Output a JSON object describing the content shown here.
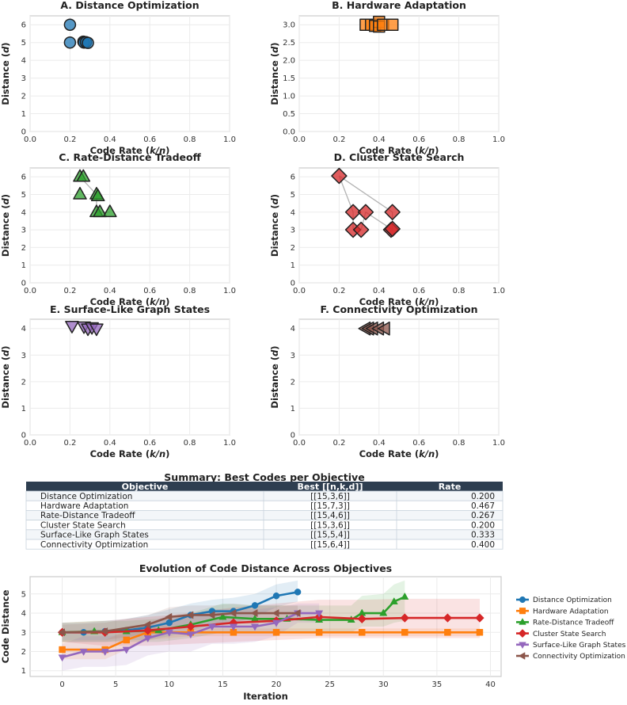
{
  "colors": {
    "distance": "#1f77b4",
    "hardware": "#ff7f0e",
    "tradeoff": "#2ca02c",
    "cluster": "#d62728",
    "surface": "#9467bd",
    "connectivity": "#8c564b",
    "table_header": "#2e3e50"
  },
  "chart_data": [
    {
      "id": "A",
      "type": "scatter",
      "title": "A. Distance Optimization",
      "xlabel": "Code Rate (k/n)",
      "ylabel": "Distance (d)",
      "xlim": [
        0,
        1
      ],
      "ylim": [
        0,
        6.5
      ],
      "xticks": [
        "0.0",
        "0.2",
        "0.4",
        "0.6",
        "0.8",
        "1.0"
      ],
      "yticks": [
        "0",
        "1",
        "2",
        "3",
        "4",
        "5",
        "6"
      ],
      "marker": "circle",
      "color_key": "distance",
      "points": [
        [
          0.2,
          6
        ],
        [
          0.2,
          5
        ],
        [
          0.267,
          5.05
        ],
        [
          0.27,
          5
        ],
        [
          0.28,
          5.02
        ],
        [
          0.29,
          4.98
        ]
      ],
      "path": []
    },
    {
      "id": "B",
      "type": "scatter",
      "title": "B. Hardware Adaptation",
      "xlabel": "Code Rate (k/n)",
      "ylabel": "Distance (d)",
      "xlim": [
        0,
        1
      ],
      "ylim": [
        0,
        3.25
      ],
      "xticks": [
        "0.0",
        "0.2",
        "0.4",
        "0.6",
        "0.8",
        "1.0"
      ],
      "yticks": [
        "0.0",
        "0.5",
        "1.0",
        "1.5",
        "2.0",
        "2.5",
        "3.0"
      ],
      "marker": "square",
      "color_key": "hardware",
      "points": [
        [
          0.333,
          3
        ],
        [
          0.36,
          3
        ],
        [
          0.38,
          2.97
        ],
        [
          0.4,
          3.08
        ],
        [
          0.4,
          2.95
        ],
        [
          0.42,
          3
        ],
        [
          0.467,
          3
        ]
      ],
      "path": []
    },
    {
      "id": "C",
      "type": "scatter",
      "title": "C. Rate-Distance Tradeoff",
      "xlabel": "Code Rate (k/n)",
      "ylabel": "Distance (d)",
      "xlim": [
        0,
        1
      ],
      "ylim": [
        0,
        6.5
      ],
      "xticks": [
        "0.0",
        "0.2",
        "0.4",
        "0.6",
        "0.8",
        "1.0"
      ],
      "yticks": [
        "0",
        "1",
        "2",
        "3",
        "4",
        "5",
        "6"
      ],
      "marker": "triangle-up",
      "color_key": "tradeoff",
      "points": [
        [
          0.25,
          6
        ],
        [
          0.267,
          6
        ],
        [
          0.25,
          5
        ],
        [
          0.333,
          5
        ],
        [
          0.34,
          4.9
        ],
        [
          0.333,
          4
        ],
        [
          0.35,
          4
        ],
        [
          0.4,
          4
        ]
      ],
      "path": [
        [
          0.25,
          6
        ],
        [
          0.333,
          5
        ],
        [
          0.333,
          4
        ],
        [
          0.4,
          4
        ]
      ]
    },
    {
      "id": "D",
      "type": "scatter",
      "title": "D. Cluster State Search",
      "xlabel": "Code Rate (k/n)",
      "ylabel": "Distance (d)",
      "xlim": [
        0,
        1
      ],
      "ylim": [
        0,
        6.5
      ],
      "xticks": [
        "0.0",
        "0.2",
        "0.4",
        "0.6",
        "0.8",
        "1.0"
      ],
      "yticks": [
        "0",
        "1",
        "2",
        "3",
        "4",
        "5",
        "6"
      ],
      "marker": "diamond",
      "color_key": "cluster",
      "points": [
        [
          0.2,
          6.05
        ],
        [
          0.27,
          4
        ],
        [
          0.333,
          4
        ],
        [
          0.467,
          4
        ],
        [
          0.27,
          3
        ],
        [
          0.31,
          3
        ],
        [
          0.46,
          3
        ],
        [
          0.467,
          3.05
        ]
      ],
      "path": [
        [
          0.2,
          6.05
        ],
        [
          0.27,
          4
        ],
        [
          0.27,
          3
        ],
        [
          0.31,
          3
        ],
        [
          0.333,
          4
        ],
        [
          0.467,
          3
        ],
        [
          0.467,
          4
        ],
        [
          0.2,
          6.05
        ]
      ]
    },
    {
      "id": "E",
      "type": "scatter",
      "title": "E. Surface-Like Graph States",
      "xlabel": "Code Rate (k/n)",
      "ylabel": "Distance (d)",
      "xlim": [
        0,
        1
      ],
      "ylim": [
        0,
        4.35
      ],
      "xticks": [
        "0.0",
        "0.2",
        "0.4",
        "0.6",
        "0.8",
        "1.0"
      ],
      "yticks": [
        "0",
        "1",
        "2",
        "3",
        "4"
      ],
      "marker": "triangle-down",
      "color_key": "surface",
      "points": [
        [
          0.21,
          4.1
        ],
        [
          0.27,
          4.08
        ],
        [
          0.29,
          4
        ],
        [
          0.31,
          4.05
        ],
        [
          0.333,
          4
        ]
      ],
      "path": []
    },
    {
      "id": "F",
      "type": "scatter",
      "title": "F. Connectivity Optimization",
      "xlabel": "Code Rate (k/n)",
      "ylabel": "Distance (d)",
      "xlim": [
        0,
        1
      ],
      "ylim": [
        0,
        4.35
      ],
      "xticks": [
        "0.0",
        "0.2",
        "0.4",
        "0.6",
        "0.8",
        "1.0"
      ],
      "yticks": [
        "0",
        "1",
        "2",
        "3",
        "4"
      ],
      "marker": "triangle-left",
      "color_key": "connectivity",
      "points": [
        [
          0.333,
          4
        ],
        [
          0.35,
          4
        ],
        [
          0.37,
          4
        ],
        [
          0.4,
          4
        ],
        [
          0.43,
          4
        ]
      ],
      "path": []
    },
    {
      "id": "table",
      "type": "table",
      "title": "Summary: Best Codes per Objective",
      "columns": [
        "Objective",
        "Best [[n,k,d]]",
        "Rate"
      ],
      "rows": [
        [
          "Distance Optimization",
          "[[15,3,6]]",
          "0.200"
        ],
        [
          "Hardware Adaptation",
          "[[15,7,3]]",
          "0.467"
        ],
        [
          "Rate-Distance Tradeoff",
          "[[15,4,6]]",
          "0.267"
        ],
        [
          "Cluster State Search",
          "[[15,3,6]]",
          "0.200"
        ],
        [
          "Surface-Like Graph States",
          "[[15,5,4]]",
          "0.333"
        ],
        [
          "Connectivity Optimization",
          "[[15,6,4]]",
          "0.400"
        ]
      ]
    },
    {
      "id": "evolution",
      "type": "line",
      "title": "Evolution of Code Distance Across Objectives",
      "xlabel": "Iteration",
      "ylabel": "Code Distance",
      "xlim": [
        -3,
        41
      ],
      "ylim": [
        0.7,
        5.9
      ],
      "xticks": [
        0,
        5,
        10,
        15,
        20,
        25,
        30,
        35,
        40
      ],
      "yticks": [
        1,
        2,
        3,
        4,
        5
      ],
      "series": [
        {
          "name": "Distance Optimization",
          "color_key": "distance",
          "marker": "circle",
          "x": [
            0,
            2,
            4,
            6,
            8,
            10,
            12,
            14,
            16,
            18,
            20,
            22
          ],
          "y": [
            3,
            3,
            3.05,
            3.1,
            3.25,
            3.5,
            3.9,
            4.1,
            4.1,
            4.4,
            4.9,
            5.1
          ],
          "lower": [
            2.5,
            2.5,
            2.5,
            2.6,
            2.6,
            2.8,
            3.1,
            3.3,
            3.5,
            3.8,
            4.3,
            4.6
          ],
          "upper": [
            3.5,
            3.5,
            3.6,
            3.7,
            3.9,
            4.2,
            4.5,
            4.7,
            4.8,
            5,
            5.5,
            5.7
          ]
        },
        {
          "name": "Hardware Adaptation",
          "color_key": "hardware",
          "marker": "square",
          "x": [
            0,
            4,
            6,
            8,
            12,
            16,
            20,
            24,
            28,
            32,
            36,
            39
          ],
          "y": [
            2.1,
            2.1,
            2.6,
            3,
            3,
            3,
            3,
            3,
            3,
            3,
            3,
            3
          ],
          "lower": [
            1.6,
            1.6,
            2.1,
            2.6,
            2.8,
            2.8,
            2.8,
            2.8,
            2.8,
            2.8,
            2.8,
            2.8
          ],
          "upper": [
            2.6,
            2.6,
            3.1,
            3.4,
            3.2,
            3.2,
            3.2,
            3.2,
            3.2,
            3.2,
            3.2,
            3.2
          ]
        },
        {
          "name": "Rate-Distance Tradeoff",
          "color_key": "tradeoff",
          "marker": "triangle-up",
          "x": [
            0,
            3,
            6,
            9,
            12,
            15,
            18,
            21,
            24,
            27,
            28,
            30,
            31,
            32
          ],
          "y": [
            3,
            3.05,
            3.05,
            3.1,
            3.4,
            3.8,
            3.7,
            3.7,
            3.65,
            3.65,
            4,
            4,
            4.6,
            4.85
          ],
          "lower": [
            2.5,
            2.5,
            2.5,
            2.5,
            2.7,
            3,
            3,
            3,
            3,
            3,
            3.3,
            3.3,
            3.5,
            3.6
          ],
          "upper": [
            3.5,
            3.6,
            3.6,
            3.7,
            4,
            4.5,
            4.4,
            4.4,
            4.4,
            4.4,
            4.9,
            5,
            5.5,
            5.7
          ]
        },
        {
          "name": "Cluster State Search",
          "color_key": "cluster",
          "marker": "diamond",
          "x": [
            0,
            4,
            8,
            12,
            16,
            20,
            24,
            28,
            32,
            36,
            39
          ],
          "y": [
            3,
            3,
            3.1,
            3.3,
            3.5,
            3.6,
            3.8,
            3.7,
            3.75,
            3.75,
            3.75
          ],
          "lower": [
            2.5,
            2.3,
            2.3,
            2.4,
            2.5,
            2.6,
            2.7,
            2.7,
            2.7,
            2.7,
            2.7
          ],
          "upper": [
            3.5,
            3.6,
            3.8,
            4,
            4.3,
            4.5,
            4.7,
            4.7,
            4.75,
            4.75,
            4.75
          ]
        },
        {
          "name": "Surface-Like Graph States",
          "color_key": "surface",
          "marker": "triangle-down",
          "x": [
            0,
            2,
            4,
            6,
            8,
            10,
            12,
            14,
            16,
            18,
            20,
            22,
            24
          ],
          "y": [
            1.7,
            2,
            2,
            2.1,
            2.7,
            3,
            2.9,
            3.3,
            3.3,
            3.3,
            3.5,
            4,
            4
          ],
          "lower": [
            1,
            1.2,
            1.2,
            1.3,
            1.8,
            2,
            2,
            2.4,
            2.4,
            2.5,
            2.8,
            3.5,
            3.5
          ],
          "upper": [
            2.4,
            2.8,
            2.8,
            2.9,
            3.5,
            3.9,
            3.8,
            4.2,
            4.2,
            4.2,
            4.3,
            4.5,
            4.5
          ]
        },
        {
          "name": "Connectivity Optimization",
          "color_key": "connectivity",
          "marker": "triangle-left",
          "x": [
            0,
            4,
            8,
            10,
            12,
            14,
            16,
            18,
            20,
            22
          ],
          "y": [
            3,
            3.05,
            3.4,
            3.8,
            3.9,
            3.9,
            4,
            4,
            4,
            4
          ],
          "lower": [
            2.6,
            2.6,
            2.9,
            3.3,
            3.4,
            3.4,
            3.5,
            3.6,
            3.6,
            3.6
          ],
          "upper": [
            3.4,
            3.5,
            3.9,
            4.3,
            4.4,
            4.4,
            4.5,
            4.4,
            4.4,
            4.4
          ]
        }
      ]
    }
  ]
}
